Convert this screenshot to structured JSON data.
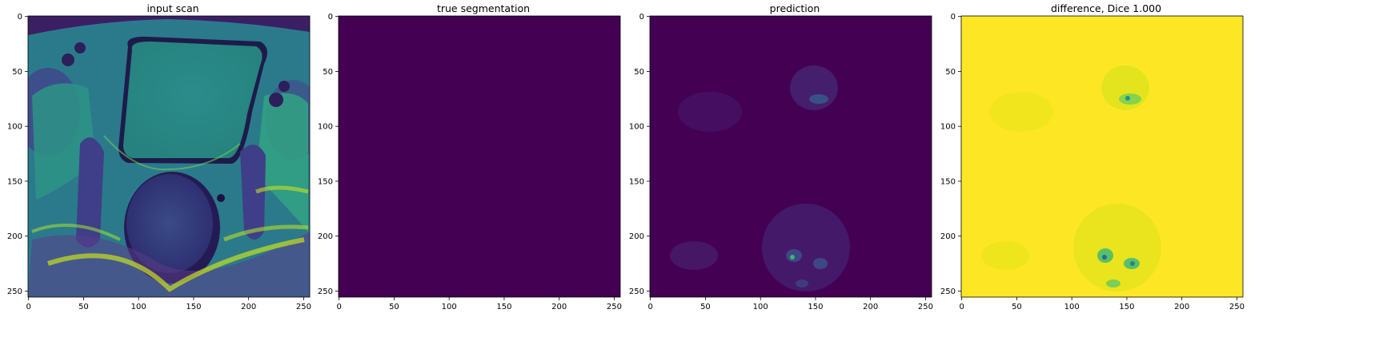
{
  "figure": {
    "background": "#ffffff",
    "colormap": "viridis",
    "panels": [
      {
        "id": "input-scan",
        "title": "input scan",
        "image": "mri-pelvis-axial-scan",
        "x_ticks": [
          "0",
          "50",
          "100",
          "150",
          "200",
          "250"
        ],
        "y_ticks": [
          "0",
          "50",
          "100",
          "150",
          "200",
          "250"
        ]
      },
      {
        "id": "true-segmentation",
        "title": "true segmentation",
        "image": "uniform-dark-purple-mask",
        "fill_color": "#440154",
        "x_ticks": [
          "0",
          "50",
          "100",
          "150",
          "200",
          "250"
        ],
        "y_ticks": [
          "0",
          "50",
          "100",
          "150",
          "200",
          "250"
        ]
      },
      {
        "id": "prediction",
        "title": "prediction",
        "image": "sparse-prediction-speckles",
        "x_ticks": [
          "0",
          "50",
          "100",
          "150",
          "200",
          "250"
        ],
        "y_ticks": [
          "0",
          "50",
          "100",
          "150",
          "200",
          "250"
        ]
      },
      {
        "id": "difference",
        "title": "difference, Dice 1.000",
        "image": "yellow-difference-map",
        "x_ticks": [
          "0",
          "50",
          "100",
          "150",
          "200",
          "250"
        ],
        "y_ticks": [
          "0",
          "50",
          "100",
          "150",
          "200",
          "250"
        ]
      }
    ]
  }
}
